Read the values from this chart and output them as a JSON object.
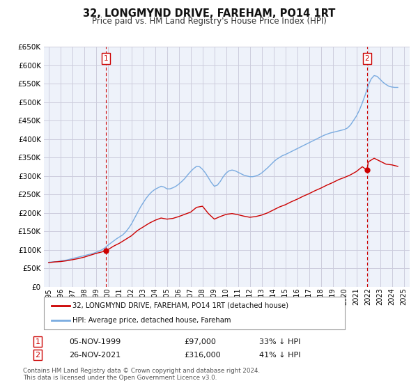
{
  "title": "32, LONGMYND DRIVE, FAREHAM, PO14 1RT",
  "subtitle": "Price paid vs. HM Land Registry's House Price Index (HPI)",
  "legend_label1": "32, LONGMYND DRIVE, FAREHAM, PO14 1RT (detached house)",
  "legend_label2": "HPI: Average price, detached house, Fareham",
  "sale1_date": "05-NOV-1999",
  "sale1_price": 97000,
  "sale1_hpi": "33% ↓ HPI",
  "sale2_date": "26-NOV-2021",
  "sale2_price": 316000,
  "sale2_hpi": "41% ↓ HPI",
  "footnote1": "Contains HM Land Registry data © Crown copyright and database right 2024.",
  "footnote2": "This data is licensed under the Open Government Licence v3.0.",
  "color_red": "#cc0000",
  "color_blue": "#7aabe0",
  "color_grid": "#ccccdd",
  "bg_chart": "#eef2fa",
  "ylim": [
    0,
    650000
  ],
  "yticks": [
    0,
    50000,
    100000,
    150000,
    200000,
    250000,
    300000,
    350000,
    400000,
    450000,
    500000,
    550000,
    600000,
    650000
  ],
  "xlim_start": 1994.6,
  "xlim_end": 2025.5,
  "xticks": [
    1995,
    1996,
    1997,
    1998,
    1999,
    2000,
    2001,
    2002,
    2003,
    2004,
    2005,
    2006,
    2007,
    2008,
    2009,
    2010,
    2011,
    2012,
    2013,
    2014,
    2015,
    2016,
    2017,
    2018,
    2019,
    2020,
    2021,
    2022,
    2023,
    2024,
    2025
  ],
  "sale1_x": 1999.85,
  "sale2_x": 2021.9,
  "hpi_data": [
    [
      1995.0,
      66000
    ],
    [
      1995.25,
      67000
    ],
    [
      1995.5,
      67500
    ],
    [
      1995.75,
      68000
    ],
    [
      1996.0,
      70000
    ],
    [
      1996.25,
      71000
    ],
    [
      1996.5,
      72000
    ],
    [
      1996.75,
      74000
    ],
    [
      1997.0,
      76000
    ],
    [
      1997.25,
      78000
    ],
    [
      1997.5,
      80000
    ],
    [
      1997.75,
      82000
    ],
    [
      1998.0,
      84000
    ],
    [
      1998.25,
      86000
    ],
    [
      1998.5,
      88000
    ],
    [
      1998.75,
      90000
    ],
    [
      1999.0,
      93000
    ],
    [
      1999.25,
      96000
    ],
    [
      1999.5,
      100000
    ],
    [
      1999.75,
      105000
    ],
    [
      2000.0,
      112000
    ],
    [
      2000.25,
      118000
    ],
    [
      2000.5,
      124000
    ],
    [
      2000.75,
      130000
    ],
    [
      2001.0,
      135000
    ],
    [
      2001.25,
      140000
    ],
    [
      2001.5,
      148000
    ],
    [
      2001.75,
      158000
    ],
    [
      2002.0,
      170000
    ],
    [
      2002.25,
      185000
    ],
    [
      2002.5,
      200000
    ],
    [
      2002.75,
      215000
    ],
    [
      2003.0,
      228000
    ],
    [
      2003.25,
      240000
    ],
    [
      2003.5,
      250000
    ],
    [
      2003.75,
      258000
    ],
    [
      2004.0,
      264000
    ],
    [
      2004.25,
      268000
    ],
    [
      2004.5,
      272000
    ],
    [
      2004.75,
      270000
    ],
    [
      2005.0,
      265000
    ],
    [
      2005.25,
      265000
    ],
    [
      2005.5,
      268000
    ],
    [
      2005.75,
      272000
    ],
    [
      2006.0,
      278000
    ],
    [
      2006.25,
      285000
    ],
    [
      2006.5,
      293000
    ],
    [
      2006.75,
      303000
    ],
    [
      2007.0,
      312000
    ],
    [
      2007.25,
      320000
    ],
    [
      2007.5,
      326000
    ],
    [
      2007.75,
      325000
    ],
    [
      2008.0,
      318000
    ],
    [
      2008.25,
      308000
    ],
    [
      2008.5,
      295000
    ],
    [
      2008.75,
      282000
    ],
    [
      2009.0,
      272000
    ],
    [
      2009.25,
      275000
    ],
    [
      2009.5,
      285000
    ],
    [
      2009.75,
      298000
    ],
    [
      2010.0,
      308000
    ],
    [
      2010.25,
      314000
    ],
    [
      2010.5,
      316000
    ],
    [
      2010.75,
      314000
    ],
    [
      2011.0,
      310000
    ],
    [
      2011.25,
      306000
    ],
    [
      2011.5,
      302000
    ],
    [
      2011.75,
      300000
    ],
    [
      2012.0,
      298000
    ],
    [
      2012.25,
      298000
    ],
    [
      2012.5,
      300000
    ],
    [
      2012.75,
      303000
    ],
    [
      2013.0,
      308000
    ],
    [
      2013.25,
      315000
    ],
    [
      2013.5,
      322000
    ],
    [
      2013.75,
      330000
    ],
    [
      2014.0,
      338000
    ],
    [
      2014.25,
      345000
    ],
    [
      2014.5,
      350000
    ],
    [
      2014.75,
      355000
    ],
    [
      2015.0,
      358000
    ],
    [
      2015.25,
      362000
    ],
    [
      2015.5,
      366000
    ],
    [
      2015.75,
      370000
    ],
    [
      2016.0,
      374000
    ],
    [
      2016.25,
      378000
    ],
    [
      2016.5,
      382000
    ],
    [
      2016.75,
      386000
    ],
    [
      2017.0,
      390000
    ],
    [
      2017.25,
      394000
    ],
    [
      2017.5,
      398000
    ],
    [
      2017.75,
      402000
    ],
    [
      2018.0,
      406000
    ],
    [
      2018.25,
      410000
    ],
    [
      2018.5,
      413000
    ],
    [
      2018.75,
      416000
    ],
    [
      2019.0,
      418000
    ],
    [
      2019.25,
      420000
    ],
    [
      2019.5,
      422000
    ],
    [
      2019.75,
      424000
    ],
    [
      2020.0,
      426000
    ],
    [
      2020.25,
      430000
    ],
    [
      2020.5,
      438000
    ],
    [
      2020.75,
      450000
    ],
    [
      2021.0,
      462000
    ],
    [
      2021.25,
      478000
    ],
    [
      2021.5,
      498000
    ],
    [
      2021.75,
      520000
    ],
    [
      2022.0,
      545000
    ],
    [
      2022.25,
      563000
    ],
    [
      2022.5,
      572000
    ],
    [
      2022.75,
      570000
    ],
    [
      2023.0,
      562000
    ],
    [
      2023.25,
      554000
    ],
    [
      2023.5,
      548000
    ],
    [
      2023.75,
      543000
    ],
    [
      2024.0,
      541000
    ],
    [
      2024.25,
      540000
    ],
    [
      2024.5,
      540000
    ]
  ],
  "red_data": [
    [
      1995.0,
      65000
    ],
    [
      1995.5,
      67000
    ],
    [
      1996.0,
      68000
    ],
    [
      1996.5,
      70000
    ],
    [
      1997.0,
      73000
    ],
    [
      1997.5,
      76000
    ],
    [
      1998.0,
      80000
    ],
    [
      1998.5,
      85000
    ],
    [
      1999.0,
      90000
    ],
    [
      1999.85,
      97000
    ],
    [
      2000.0,
      100000
    ],
    [
      2000.5,
      110000
    ],
    [
      2001.0,
      118000
    ],
    [
      2001.5,
      128000
    ],
    [
      2002.0,
      138000
    ],
    [
      2002.5,
      152000
    ],
    [
      2003.0,
      162000
    ],
    [
      2003.5,
      172000
    ],
    [
      2004.0,
      180000
    ],
    [
      2004.5,
      186000
    ],
    [
      2005.0,
      183000
    ],
    [
      2005.5,
      185000
    ],
    [
      2006.0,
      190000
    ],
    [
      2006.5,
      196000
    ],
    [
      2007.0,
      202000
    ],
    [
      2007.5,
      215000
    ],
    [
      2008.0,
      218000
    ],
    [
      2008.5,
      198000
    ],
    [
      2009.0,
      183000
    ],
    [
      2009.5,
      190000
    ],
    [
      2010.0,
      196000
    ],
    [
      2010.5,
      198000
    ],
    [
      2011.0,
      195000
    ],
    [
      2011.5,
      191000
    ],
    [
      2012.0,
      188000
    ],
    [
      2012.5,
      190000
    ],
    [
      2013.0,
      194000
    ],
    [
      2013.5,
      200000
    ],
    [
      2014.0,
      208000
    ],
    [
      2014.5,
      216000
    ],
    [
      2015.0,
      222000
    ],
    [
      2015.5,
      230000
    ],
    [
      2016.0,
      237000
    ],
    [
      2016.5,
      245000
    ],
    [
      2017.0,
      252000
    ],
    [
      2017.5,
      260000
    ],
    [
      2018.0,
      267000
    ],
    [
      2018.5,
      275000
    ],
    [
      2019.0,
      282000
    ],
    [
      2019.5,
      290000
    ],
    [
      2020.0,
      296000
    ],
    [
      2020.5,
      303000
    ],
    [
      2021.0,
      312000
    ],
    [
      2021.5,
      325000
    ],
    [
      2021.9,
      316000
    ],
    [
      2022.0,
      338000
    ],
    [
      2022.5,
      348000
    ],
    [
      2023.0,
      340000
    ],
    [
      2023.5,
      332000
    ],
    [
      2024.0,
      330000
    ],
    [
      2024.5,
      326000
    ]
  ]
}
